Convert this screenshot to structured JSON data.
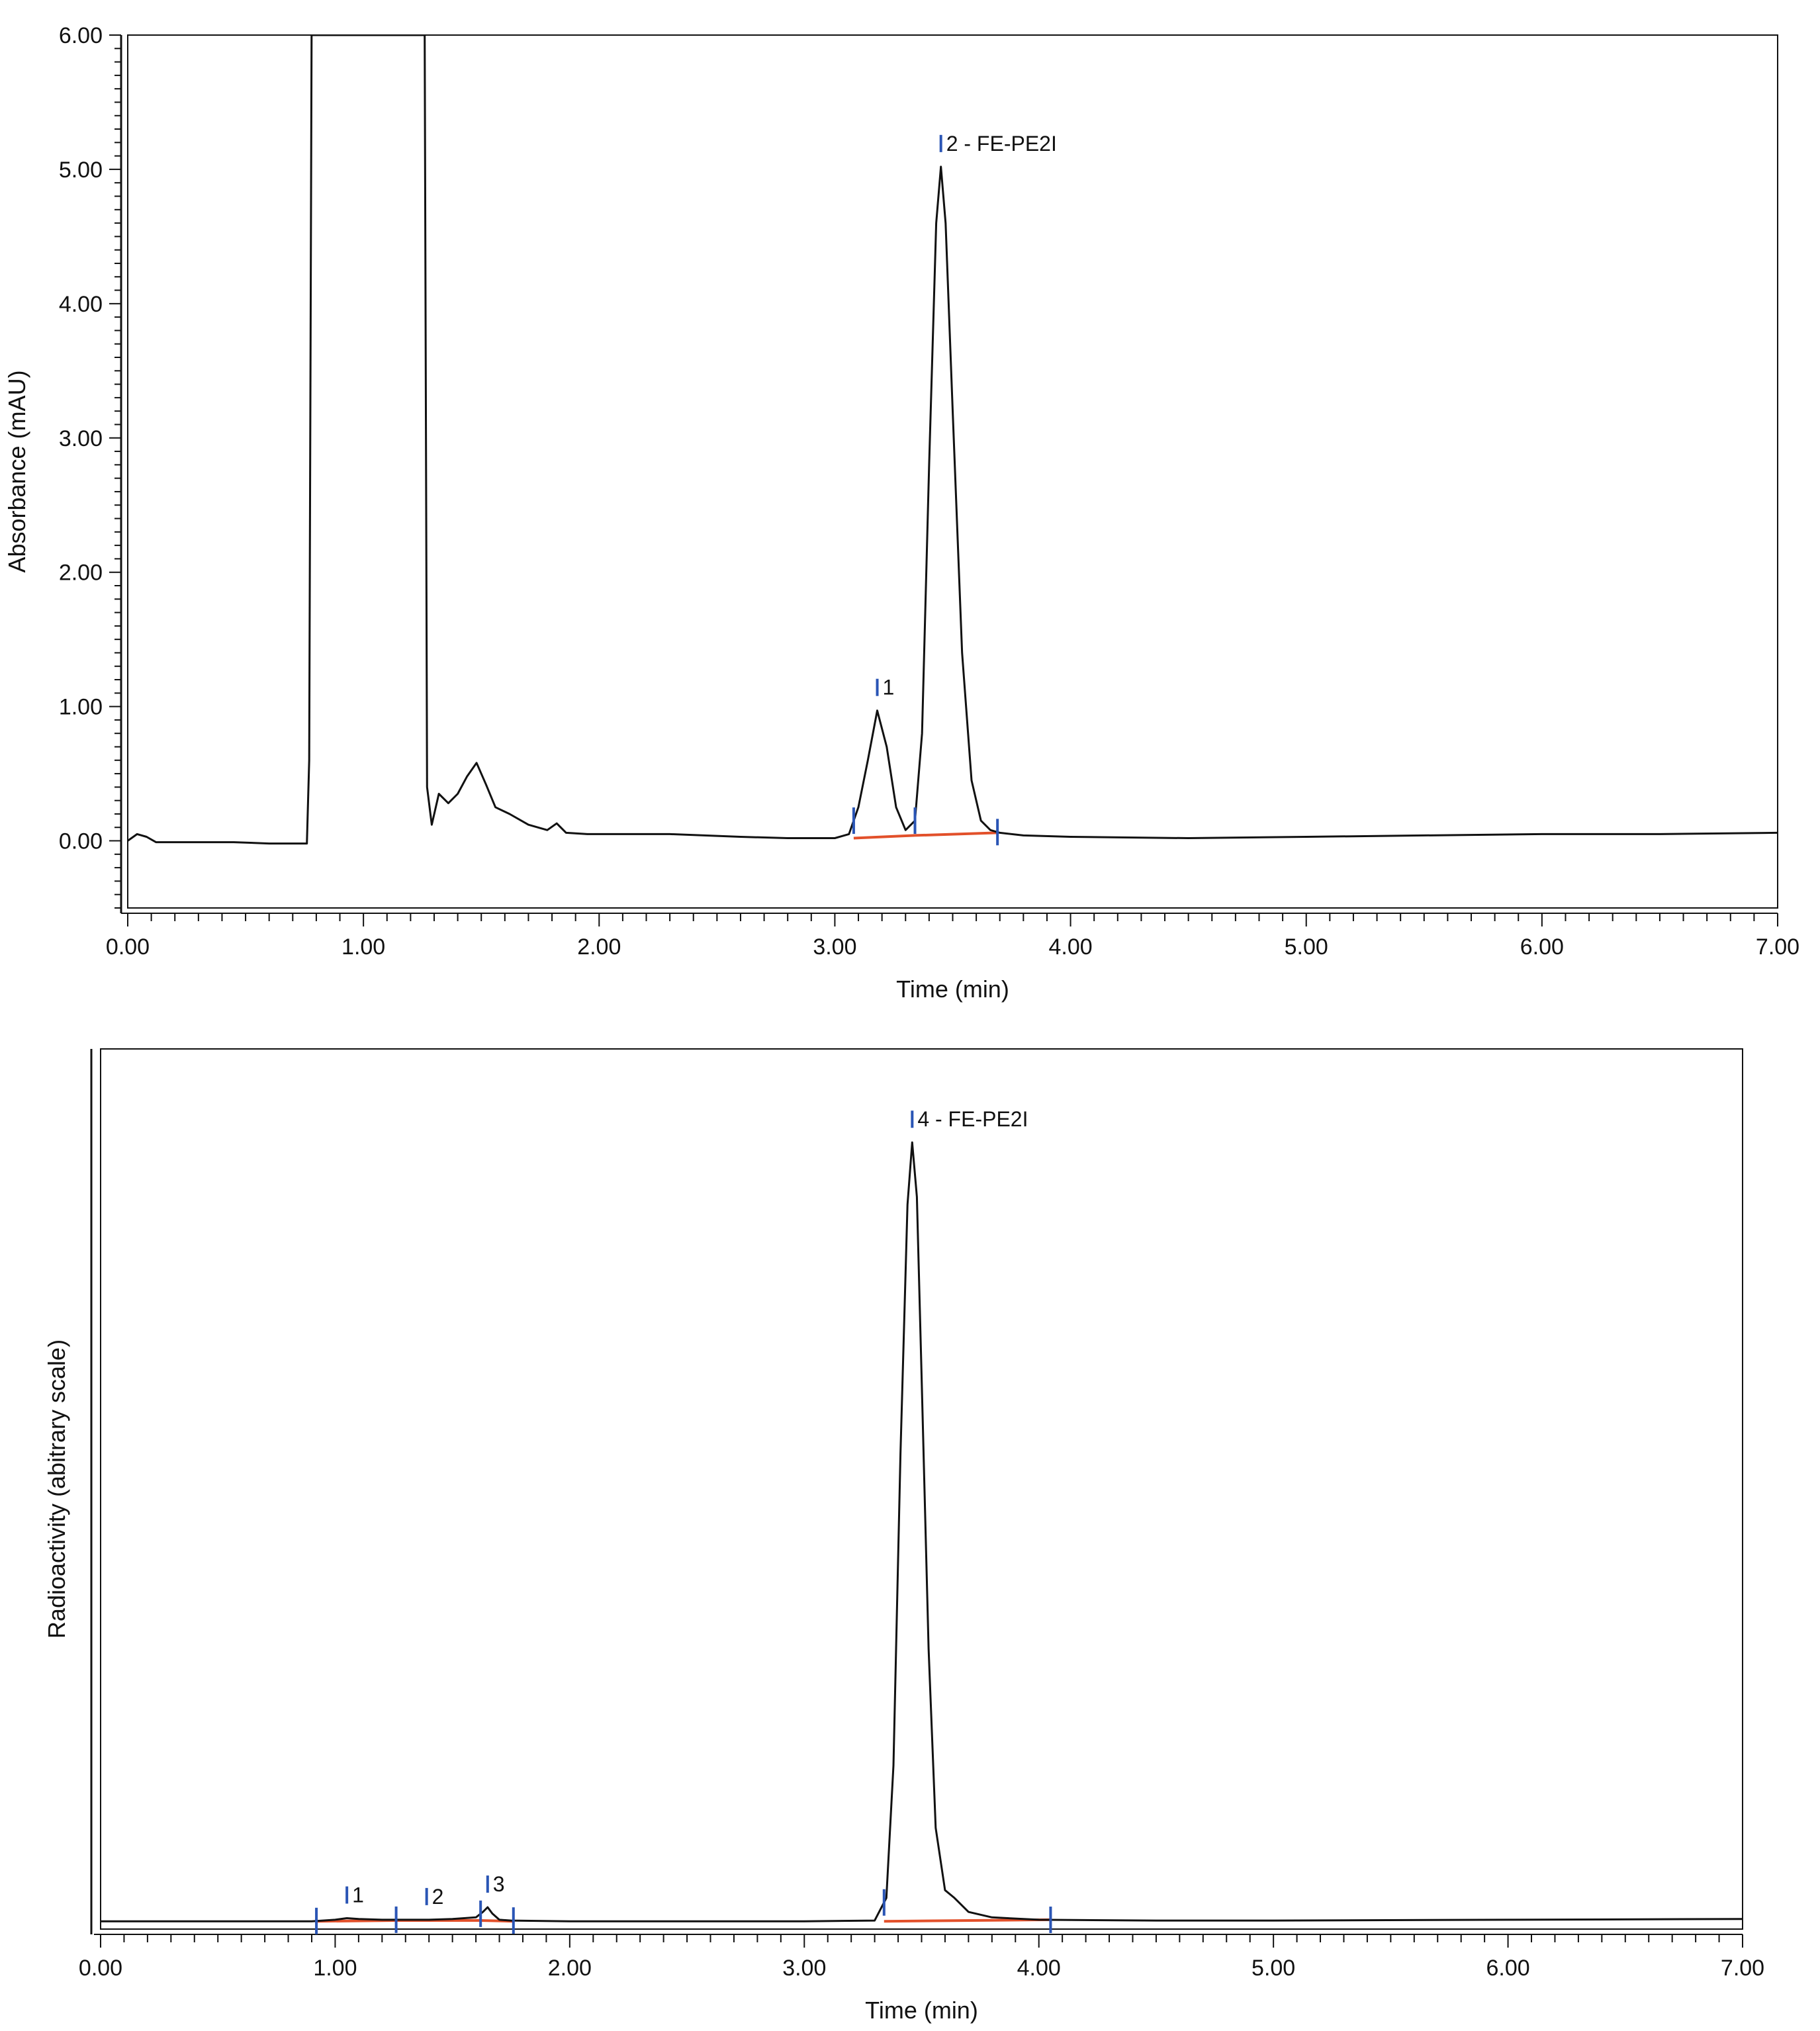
{
  "chart_data": [
    {
      "type": "line",
      "ylabel": "Absorbance (mAU)",
      "xlabel": "Time (min)",
      "xlim": [
        0,
        7
      ],
      "ylim": [
        -0.5,
        6
      ],
      "xticks": [
        "0.00",
        "1.00",
        "2.00",
        "3.00",
        "4.00",
        "5.00",
        "6.00",
        "7.00"
      ],
      "yticks": [
        "0.00",
        "1.00",
        "2.00",
        "3.00",
        "4.00",
        "5.00",
        "6.00"
      ],
      "ytick_values": [
        0,
        1,
        2,
        3,
        4,
        5,
        6
      ],
      "grid": false,
      "line_color": "#111111",
      "baseline_color": "#e2502a",
      "marker_color": "#2a55b5",
      "series": [
        {
          "x": [
            0.0,
            0.04,
            0.08,
            0.12,
            0.18,
            0.3,
            0.45,
            0.6,
            0.7,
            0.76,
            0.77,
            0.78,
            1.2,
            1.26,
            1.27,
            1.29,
            1.32,
            1.36,
            1.4,
            1.44,
            1.48,
            1.52,
            1.56,
            1.62,
            1.7,
            1.78,
            1.82,
            1.86,
            1.95,
            2.1,
            2.3,
            2.6,
            2.8,
            3.0,
            3.06,
            3.1,
            3.14,
            3.18,
            3.22,
            3.26,
            3.3,
            3.34,
            3.37,
            3.4,
            3.43,
            3.45,
            3.47,
            3.5,
            3.54,
            3.58,
            3.62,
            3.66,
            3.7,
            3.8,
            4.0,
            4.5,
            5.0,
            5.5,
            6.0,
            6.5,
            7.0
          ],
          "y": [
            0.0,
            0.05,
            0.03,
            -0.01,
            -0.01,
            -0.01,
            -0.01,
            -0.02,
            -0.02,
            -0.02,
            0.6,
            6.0,
            6.0,
            6.0,
            0.4,
            0.12,
            0.35,
            0.28,
            0.35,
            0.48,
            0.58,
            0.42,
            0.25,
            0.2,
            0.12,
            0.08,
            0.13,
            0.06,
            0.05,
            0.05,
            0.05,
            0.03,
            0.02,
            0.02,
            0.05,
            0.25,
            0.6,
            0.97,
            0.7,
            0.25,
            0.08,
            0.15,
            0.8,
            2.8,
            4.6,
            5.02,
            4.6,
            3.2,
            1.4,
            0.45,
            0.15,
            0.08,
            0.06,
            0.04,
            0.03,
            0.02,
            0.03,
            0.04,
            0.05,
            0.05,
            0.06
          ]
        }
      ],
      "integration_baselines": [
        {
          "x": [
            3.08,
            3.34
          ],
          "y": [
            0.02,
            0.04
          ]
        },
        {
          "x": [
            3.34,
            3.69
          ],
          "y": [
            0.04,
            0.06
          ]
        }
      ],
      "boundary_markers": [
        3.08,
        3.34,
        3.69
      ],
      "peak_labels": [
        {
          "x": 3.18,
          "y": 0.97,
          "text": "1"
        },
        {
          "x": 3.45,
          "y": 5.02,
          "text": "2 - FE-PE2I"
        }
      ]
    },
    {
      "type": "line",
      "ylabel": "Radioactivity (abitrary scale)",
      "xlabel": "Time (min)",
      "xlim": [
        0,
        7
      ],
      "ylim": [
        -0.01,
        1.12
      ],
      "xticks": [
        "0.00",
        "1.00",
        "2.00",
        "3.00",
        "4.00",
        "5.00",
        "6.00",
        "7.00"
      ],
      "grid": false,
      "series": [
        {
          "x": [
            0.0,
            0.5,
            0.9,
            1.0,
            1.05,
            1.1,
            1.2,
            1.3,
            1.4,
            1.5,
            1.6,
            1.63,
            1.65,
            1.67,
            1.7,
            1.75,
            2.0,
            2.5,
            3.0,
            3.3,
            3.35,
            3.38,
            3.41,
            3.44,
            3.46,
            3.48,
            3.5,
            3.53,
            3.56,
            3.6,
            3.64,
            3.7,
            3.8,
            4.0,
            4.5,
            5.0,
            6.0,
            7.0
          ],
          "y": [
            0.0,
            0.0,
            0.0,
            0.002,
            0.004,
            0.003,
            0.002,
            0.002,
            0.002,
            0.003,
            0.005,
            0.012,
            0.018,
            0.01,
            0.002,
            0.001,
            0.0,
            0.0,
            0.0,
            0.001,
            0.03,
            0.2,
            0.6,
            0.92,
            1.0,
            0.93,
            0.7,
            0.35,
            0.12,
            0.04,
            0.03,
            0.012,
            0.005,
            0.002,
            0.001,
            0.001,
            0.002,
            0.003
          ]
        }
      ],
      "integration_baselines": [
        {
          "x": [
            0.92,
            1.26
          ],
          "y": [
            0.0,
            0.001
          ]
        },
        {
          "x": [
            1.26,
            1.62
          ],
          "y": [
            0.001,
            0.001
          ]
        },
        {
          "x": [
            1.62,
            1.76
          ],
          "y": [
            0.001,
            0.0
          ]
        },
        {
          "x": [
            3.34,
            4.05
          ],
          "y": [
            0.0,
            0.002
          ]
        }
      ],
      "boundary_markers": [
        0.92,
        1.26,
        1.62,
        1.76,
        3.34,
        4.05
      ],
      "peak_labels": [
        {
          "x": 1.05,
          "y": 0.004,
          "text": "1"
        },
        {
          "x": 1.39,
          "y": 0.002,
          "text": "2"
        },
        {
          "x": 1.65,
          "y": 0.018,
          "text": "3"
        },
        {
          "x": 3.46,
          "y": 1.0,
          "text": "4 - FE-PE2I"
        }
      ]
    }
  ]
}
